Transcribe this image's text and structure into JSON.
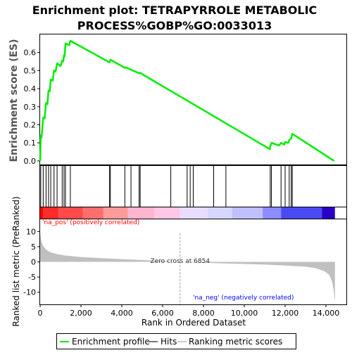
{
  "title_line1": "Enrichment plot: TETRAPYRROLE METABOLIC",
  "title_line2": "PROCESS%GOBP%GO:0033013",
  "chart_data": [
    {
      "type": "line",
      "panel": "enrichment-profile",
      "ylabel": "Enrichment score (ES)",
      "xlim": [
        0,
        15000
      ],
      "ylim": [
        -0.02,
        0.7
      ],
      "yticks": [
        0.0,
        0.1,
        0.2,
        0.3,
        0.4,
        0.5,
        0.6
      ],
      "ytick_labels": [
        "0.0",
        "0.1",
        "0.2",
        "0.3",
        "0.4",
        "0.5",
        "0.6"
      ],
      "line_color": "#00ee00",
      "points": [
        [
          0,
          0.0
        ],
        [
          30,
          0.14
        ],
        [
          70,
          0.13
        ],
        [
          150,
          0.24
        ],
        [
          220,
          0.235
        ],
        [
          290,
          0.32
        ],
        [
          360,
          0.315
        ],
        [
          410,
          0.39
        ],
        [
          470,
          0.385
        ],
        [
          520,
          0.45
        ],
        [
          620,
          0.445
        ],
        [
          680,
          0.5
        ],
        [
          760,
          0.495
        ],
        [
          830,
          0.54
        ],
        [
          1000,
          0.525
        ],
        [
          1080,
          0.555
        ],
        [
          1130,
          0.55
        ],
        [
          1170,
          0.585
        ],
        [
          1200,
          0.58
        ],
        [
          1240,
          0.65
        ],
        [
          1420,
          0.64
        ],
        [
          1480,
          0.665
        ],
        [
          3400,
          0.545
        ],
        [
          3440,
          0.56
        ],
        [
          4150,
          0.515
        ],
        [
          4200,
          0.518
        ],
        [
          4450,
          0.505
        ],
        [
          4850,
          0.485
        ],
        [
          4900,
          0.488
        ],
        [
          5000,
          0.48
        ],
        [
          11250,
          0.065
        ],
        [
          11270,
          0.08
        ],
        [
          11330,
          0.1
        ],
        [
          11700,
          0.085
        ],
        [
          11800,
          0.1
        ],
        [
          11950,
          0.09
        ],
        [
          12000,
          0.105
        ],
        [
          12150,
          0.1
        ],
        [
          12200,
          0.115
        ],
        [
          12300,
          0.125
        ],
        [
          12350,
          0.15
        ],
        [
          14400,
          0.0
        ]
      ]
    },
    {
      "type": "hits",
      "panel": "hits",
      "x": [
        30,
        150,
        290,
        410,
        520,
        680,
        830,
        1080,
        1170,
        1240,
        1480,
        3400,
        3440,
        4150,
        4450,
        4850,
        4900,
        6400,
        7200,
        7350,
        7500,
        8500,
        9100,
        11270,
        11330,
        11800,
        12000,
        12200,
        12300,
        12350
      ]
    },
    {
      "type": "area",
      "panel": "ranked-metric",
      "xlabel": "Rank in Ordered Dataset",
      "ylabel": "Ranked list metric (PreRanked)",
      "xlim": [
        0,
        15000
      ],
      "ylim": [
        -14,
        14
      ],
      "yticks": [
        10,
        5,
        0,
        -5,
        -10
      ],
      "ytick_labels": [
        "10",
        "5",
        "0",
        "-5",
        "-10"
      ],
      "xticks": [
        0,
        2000,
        4000,
        6000,
        8000,
        10000,
        12000,
        14000
      ],
      "xtick_labels": [
        "0",
        "2,000",
        "4,000",
        "6,000",
        "8,000",
        "10,000",
        "12,000",
        "14,000"
      ],
      "points": [
        [
          0,
          9.5
        ],
        [
          60,
          6.8
        ],
        [
          150,
          5.2
        ],
        [
          300,
          4.0
        ],
        [
          500,
          3.2
        ],
        [
          800,
          2.6
        ],
        [
          1200,
          2.1
        ],
        [
          2000,
          1.6
        ],
        [
          3000,
          1.2
        ],
        [
          4000,
          0.9
        ],
        [
          5000,
          0.6
        ],
        [
          6000,
          0.3
        ],
        [
          6854,
          0.0
        ],
        [
          8000,
          -0.3
        ],
        [
          9000,
          -0.5
        ],
        [
          10000,
          -0.7
        ],
        [
          11000,
          -0.9
        ],
        [
          12000,
          -1.2
        ],
        [
          13000,
          -1.6
        ],
        [
          13500,
          -2.1
        ],
        [
          13900,
          -3.0
        ],
        [
          14150,
          -4.2
        ],
        [
          14300,
          -6.5
        ],
        [
          14380,
          -9.5
        ],
        [
          14420,
          -12.5
        ],
        [
          14440,
          -12.5
        ]
      ],
      "zero_cross_label": "Zero cross at 6854",
      "zero_cross_x": 6854,
      "pos_label": "'na_pos' (positively correlated)",
      "neg_label": "'na_neg' (negatively correlated)"
    }
  ],
  "colors": {
    "profile": "#00ee00",
    "hits": "#000000",
    "pos_text": "#ff0000",
    "neg_text": "#0000ff",
    "metric_fill": "#c0c0c0",
    "zero_line": "#a0a0a0"
  },
  "heatmap_segments": [
    {
      "x0": 0,
      "x1": 150,
      "color": "#ff0000"
    },
    {
      "x0": 150,
      "x1": 900,
      "color": "#ff2a2a"
    },
    {
      "x0": 900,
      "x1": 2100,
      "color": "#ff4a4a"
    },
    {
      "x0": 2100,
      "x1": 3100,
      "color": "#ff6e6e"
    },
    {
      "x0": 3100,
      "x1": 4300,
      "color": "#ff9a9a"
    },
    {
      "x0": 4300,
      "x1": 5600,
      "color": "#ffb5d0"
    },
    {
      "x0": 5600,
      "x1": 6854,
      "color": "#ffc6e6"
    },
    {
      "x0": 6854,
      "x1": 8200,
      "color": "#e8dcff"
    },
    {
      "x0": 8200,
      "x1": 9400,
      "color": "#d6d6ff"
    },
    {
      "x0": 9400,
      "x1": 10900,
      "color": "#c0c0ff"
    },
    {
      "x0": 10900,
      "x1": 11800,
      "color": "#8c8cff"
    },
    {
      "x0": 11800,
      "x1": 13800,
      "color": "#4a4af2"
    },
    {
      "x0": 13800,
      "x1": 14440,
      "color": "#2a00c8"
    }
  ],
  "legend": {
    "items": [
      {
        "label": "Enrichment profile",
        "icon": "green-line",
        "color": "#00ee00"
      },
      {
        "label": "Hits",
        "icon": "gray-line",
        "color": "#777777"
      },
      {
        "label": "Ranking metric scores",
        "icon": "light-gray-line",
        "color": "#cccccc"
      }
    ]
  }
}
